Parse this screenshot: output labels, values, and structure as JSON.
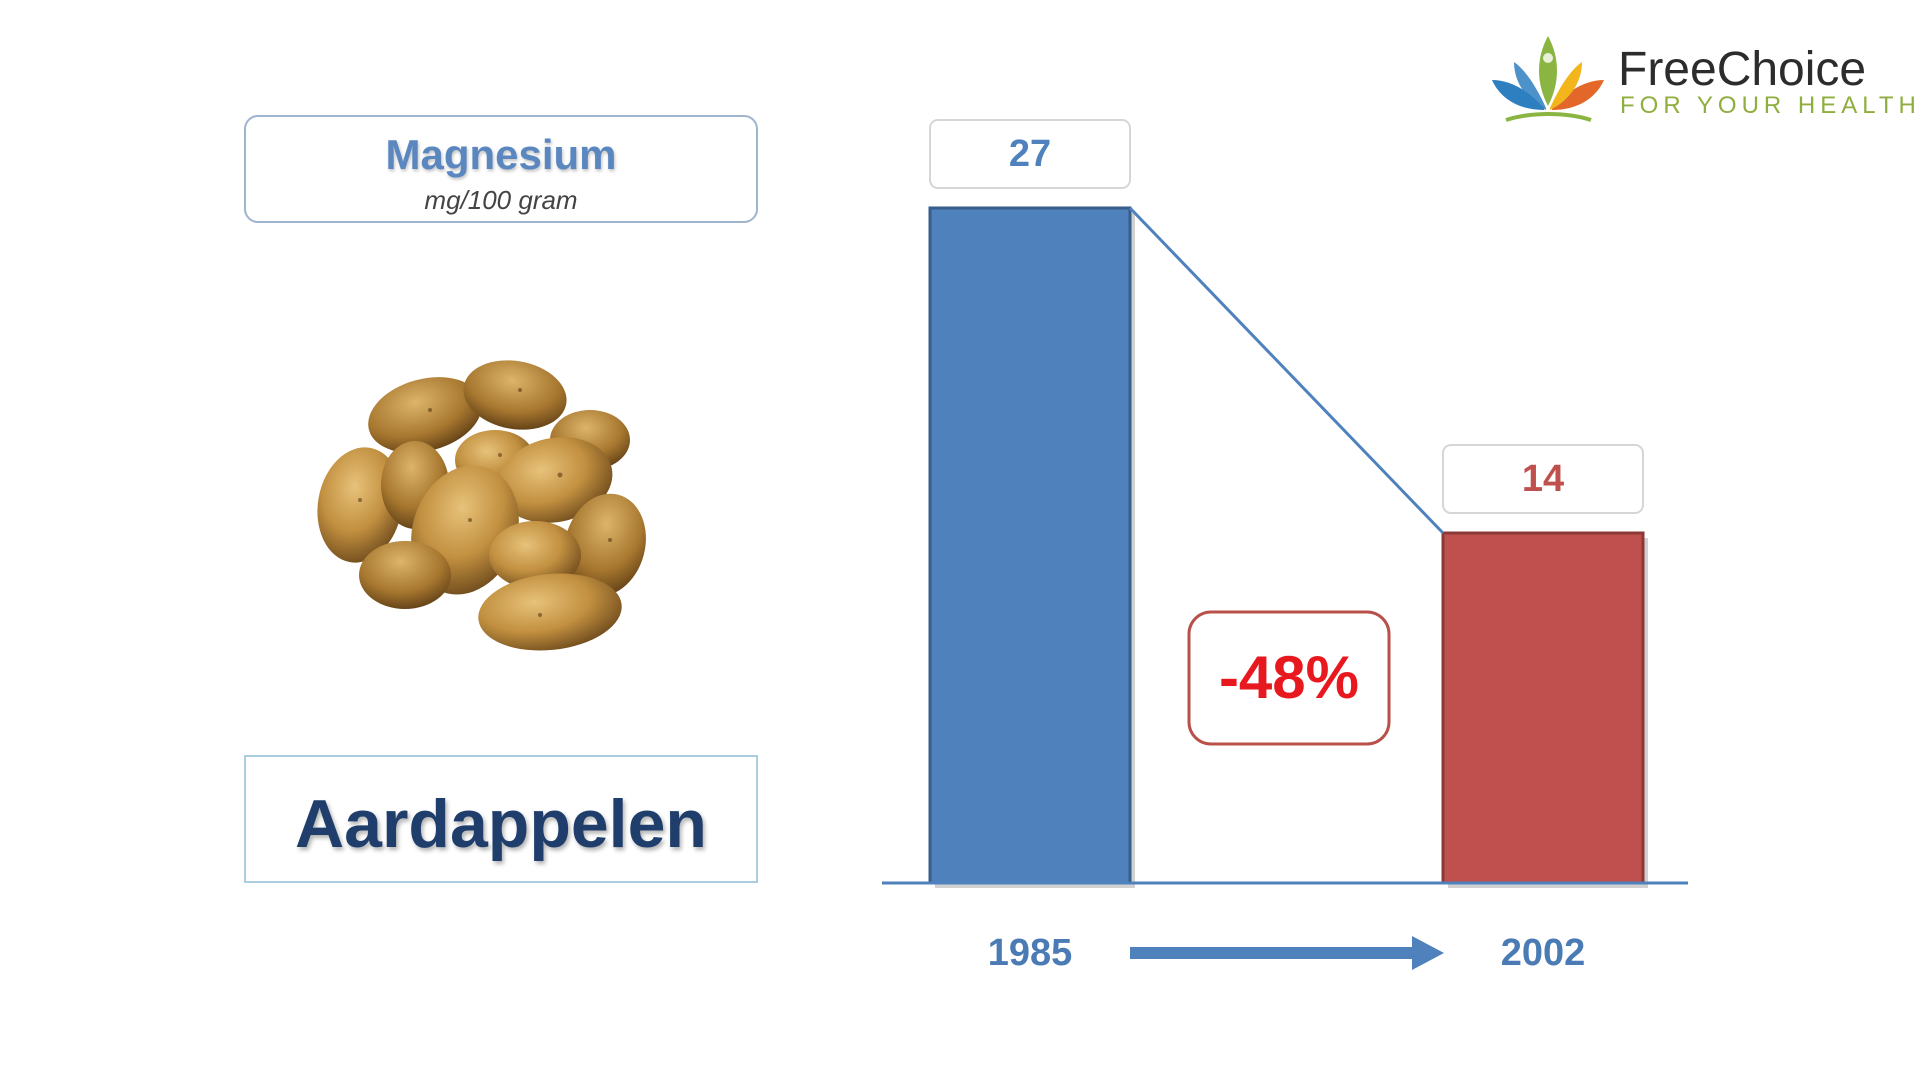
{
  "logo": {
    "title": "FreeChoice",
    "subtitle": "FOR YOUR HEALTH",
    "colors": [
      "#2e7fc0",
      "#8bb542",
      "#f3b51c",
      "#e4672a"
    ]
  },
  "nutrient": {
    "name": "Magnesium",
    "unit": "mg/100 gram"
  },
  "food": {
    "name": "Aardappelen",
    "image": "potatoes-image"
  },
  "chart_data": {
    "type": "bar",
    "categories": [
      "1985",
      "2002"
    ],
    "values": [
      27,
      14
    ],
    "value_labels": [
      "27",
      "14"
    ],
    "colors": [
      "#4f81bd",
      "#c0504d"
    ],
    "ylim": [
      0,
      27
    ],
    "change_label": "-48%",
    "change_color": "#e8191e",
    "grid": false,
    "legend": "none"
  }
}
